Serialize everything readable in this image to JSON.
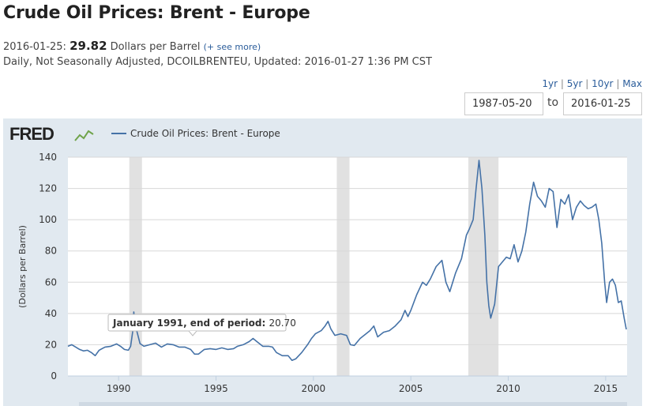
{
  "header": {
    "title": "Crude Oil Prices: Brent - Europe",
    "obs_date": "2016-01-25:",
    "obs_value": "29.82",
    "obs_units": "Dollars per Barrel",
    "see_more": "(+ see more)",
    "meta": "Daily, Not Seasonally Adjusted, DCOILBRENTEU, Updated: 2016-01-27 1:36 PM CST"
  },
  "range": {
    "links": [
      "1yr",
      "5yr",
      "10yr",
      "Max"
    ],
    "separator": "|",
    "start_date": "1987-05-20",
    "to_label": "to",
    "end_date": "2016-01-25"
  },
  "logo": {
    "text": "FRED"
  },
  "tooltip": {
    "label": "January 1991, end of period:",
    "value": "20.70"
  },
  "colors": {
    "series": "#4572a7",
    "recession": "#e1e1e1",
    "background": "#e1e9f0"
  },
  "chart_data": {
    "type": "line",
    "title": "",
    "xlabel": "",
    "ylabel": "(Dollars per Barrel)",
    "legend": "Crude Oil Prices: Brent - Europe",
    "legend_position": "top-left",
    "xlim": [
      1987.4,
      2016.1
    ],
    "ylim": [
      0,
      140
    ],
    "x_ticks": [
      1990,
      1995,
      2000,
      2005,
      2010,
      2015
    ],
    "x_tick_labels": [
      "1990",
      "1995",
      "2000",
      "2005",
      "2010",
      "2015"
    ],
    "y_ticks": [
      0,
      20,
      40,
      60,
      80,
      100,
      120,
      140
    ],
    "y_tick_labels": [
      "0",
      "20",
      "40",
      "60",
      "80",
      "100",
      "120",
      "140"
    ],
    "recessions": [
      [
        1990.55,
        1991.2
      ],
      [
        2001.2,
        2001.85
      ],
      [
        2007.95,
        2009.5
      ]
    ],
    "series": [
      {
        "name": "Crude Oil Prices: Brent - Europe",
        "points": [
          [
            1987.4,
            19
          ],
          [
            1987.6,
            20
          ],
          [
            1987.8,
            18.5
          ],
          [
            1988.0,
            17
          ],
          [
            1988.2,
            16
          ],
          [
            1988.4,
            16.5
          ],
          [
            1988.6,
            15
          ],
          [
            1988.8,
            13
          ],
          [
            1989.0,
            16.5
          ],
          [
            1989.3,
            18.5
          ],
          [
            1989.6,
            19
          ],
          [
            1989.9,
            20.5
          ],
          [
            1990.1,
            19
          ],
          [
            1990.3,
            17
          ],
          [
            1990.5,
            16.5
          ],
          [
            1990.62,
            19
          ],
          [
            1990.72,
            28
          ],
          [
            1990.78,
            41
          ],
          [
            1990.85,
            33
          ],
          [
            1990.95,
            28
          ],
          [
            1991.1,
            20.7
          ],
          [
            1991.3,
            19
          ],
          [
            1991.6,
            20
          ],
          [
            1991.9,
            21
          ],
          [
            1992.2,
            18.5
          ],
          [
            1992.5,
            20.5
          ],
          [
            1992.8,
            20
          ],
          [
            1993.1,
            18.5
          ],
          [
            1993.4,
            18.5
          ],
          [
            1993.7,
            17
          ],
          [
            1993.9,
            14
          ],
          [
            1994.1,
            14
          ],
          [
            1994.4,
            17
          ],
          [
            1994.7,
            17.5
          ],
          [
            1995.0,
            17
          ],
          [
            1995.3,
            18
          ],
          [
            1995.6,
            17
          ],
          [
            1995.9,
            17.5
          ],
          [
            1996.1,
            19
          ],
          [
            1996.4,
            20
          ],
          [
            1996.7,
            22
          ],
          [
            1996.9,
            24
          ],
          [
            1997.1,
            22
          ],
          [
            1997.4,
            19
          ],
          [
            1997.7,
            19
          ],
          [
            1997.9,
            18.5
          ],
          [
            1998.1,
            15
          ],
          [
            1998.4,
            13
          ],
          [
            1998.7,
            13
          ],
          [
            1998.9,
            10
          ],
          [
            1999.1,
            11
          ],
          [
            1999.4,
            15
          ],
          [
            1999.7,
            20
          ],
          [
            1999.9,
            24
          ],
          [
            2000.1,
            27
          ],
          [
            2000.4,
            29
          ],
          [
            2000.6,
            32
          ],
          [
            2000.75,
            35
          ],
          [
            2000.9,
            30
          ],
          [
            2001.1,
            26
          ],
          [
            2001.4,
            27
          ],
          [
            2001.7,
            26
          ],
          [
            2001.9,
            20
          ],
          [
            2002.1,
            19.5
          ],
          [
            2002.4,
            24
          ],
          [
            2002.7,
            27
          ],
          [
            2002.9,
            29
          ],
          [
            2003.1,
            32
          ],
          [
            2003.3,
            25
          ],
          [
            2003.6,
            28
          ],
          [
            2003.9,
            29
          ],
          [
            2004.2,
            32
          ],
          [
            2004.5,
            36
          ],
          [
            2004.7,
            42
          ],
          [
            2004.85,
            38
          ],
          [
            2005.0,
            42
          ],
          [
            2005.3,
            52
          ],
          [
            2005.6,
            60
          ],
          [
            2005.8,
            58
          ],
          [
            2006.0,
            62
          ],
          [
            2006.3,
            70
          ],
          [
            2006.6,
            74
          ],
          [
            2006.8,
            60
          ],
          [
            2007.0,
            54
          ],
          [
            2007.3,
            66
          ],
          [
            2007.6,
            75
          ],
          [
            2007.85,
            90
          ],
          [
            2008.0,
            94
          ],
          [
            2008.2,
            100
          ],
          [
            2008.35,
            120
          ],
          [
            2008.5,
            138
          ],
          [
            2008.65,
            120
          ],
          [
            2008.8,
            90
          ],
          [
            2008.9,
            60
          ],
          [
            2009.0,
            45
          ],
          [
            2009.1,
            37
          ],
          [
            2009.3,
            46
          ],
          [
            2009.5,
            70
          ],
          [
            2009.7,
            73
          ],
          [
            2009.9,
            76
          ],
          [
            2010.1,
            75
          ],
          [
            2010.3,
            84
          ],
          [
            2010.5,
            73
          ],
          [
            2010.7,
            80
          ],
          [
            2010.9,
            92
          ],
          [
            2011.1,
            110
          ],
          [
            2011.3,
            124
          ],
          [
            2011.5,
            115
          ],
          [
            2011.7,
            112
          ],
          [
            2011.9,
            108
          ],
          [
            2012.1,
            120
          ],
          [
            2012.3,
            118
          ],
          [
            2012.5,
            95
          ],
          [
            2012.7,
            113
          ],
          [
            2012.9,
            110
          ],
          [
            2013.1,
            116
          ],
          [
            2013.3,
            100
          ],
          [
            2013.5,
            108
          ],
          [
            2013.7,
            112
          ],
          [
            2013.9,
            109
          ],
          [
            2014.1,
            107
          ],
          [
            2014.3,
            108
          ],
          [
            2014.5,
            110
          ],
          [
            2014.65,
            100
          ],
          [
            2014.8,
            85
          ],
          [
            2014.95,
            60
          ],
          [
            2015.05,
            47
          ],
          [
            2015.2,
            60
          ],
          [
            2015.35,
            62
          ],
          [
            2015.5,
            58
          ],
          [
            2015.65,
            47
          ],
          [
            2015.8,
            48
          ],
          [
            2015.95,
            37
          ],
          [
            2016.06,
            29.8
          ]
        ]
      }
    ]
  }
}
